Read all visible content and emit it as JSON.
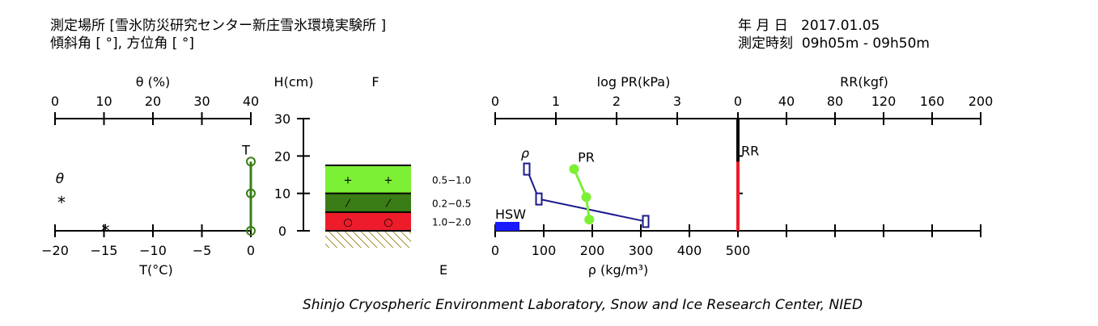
{
  "header": {
    "site_label": "測定場所 [",
    "site_name": "雪氷防災研究センター新庄雪氷環境実験所",
    "site_close": "]",
    "angle_line": "傾斜角 [ °], 方位角 [ °]",
    "date_label": "年 月 日",
    "date_value": "2017.01.05",
    "time_label": "測定時刻",
    "time_value": "09h05m - 09h50m"
  },
  "footer": "Shinjo Cryospheric Environment Laboratory, Snow and Ice Research Center, NIED",
  "chart_data": [
    {
      "type": "line",
      "panel": "theta-temperature",
      "top_axis_label": "θ (%)",
      "top_axis_ticks": [
        "0",
        "10",
        "20",
        "30",
        "40"
      ],
      "bottom_axis_label": "T(°C)",
      "bottom_axis_ticks": [
        "−20",
        "−15",
        "−10",
        "−5",
        "0"
      ],
      "xlim_temperature": [
        -20,
        0
      ],
      "xlim_theta": [
        0,
        40
      ],
      "legend": {
        "theta_symbol": "θ",
        "theta_marker": "*"
      },
      "series": [
        {
          "name": "T",
          "color": "#3a7d17",
          "marker": "circle",
          "points": [
            {
              "h": 0,
              "t": 0
            },
            {
              "h": 10,
              "t": 0
            },
            {
              "h": 18.5,
              "t": 0
            }
          ]
        },
        {
          "name": "θ",
          "marker": "*",
          "points": [
            {
              "h": 0,
              "theta": 10
            }
          ]
        }
      ]
    },
    {
      "type": "table",
      "panel": "stratigraphy",
      "height_axis_label": "H(cm)",
      "height_ticks": [
        "0",
        "10",
        "20",
        "30"
      ],
      "ylim": [
        0,
        30
      ],
      "column_label_top": "F",
      "column_label_bottom": "E",
      "snow_top_cm": 17.5,
      "layers": [
        {
          "bottom": 10,
          "top": 17.5,
          "color": "#7cf034",
          "grain_symbol": "+",
          "size": "0.5−1.0"
        },
        {
          "bottom": 5,
          "top": 10,
          "color": "#3a7d17",
          "grain_symbol": "⁄",
          "size": "0.2−0.5"
        },
        {
          "bottom": 0,
          "top": 5,
          "color": "#ee1c2b",
          "grain_symbol": "○",
          "size": "1.0−2.0"
        }
      ]
    },
    {
      "type": "line",
      "panel": "density-hardness",
      "top_axis_label": "log PR(kPa)",
      "top_axis_ticks": [
        "0",
        "1",
        "2",
        "3"
      ],
      "xlim_logpr": [
        0,
        4
      ],
      "bottom_axis_label": "ρ (kg/m³)",
      "bottom_axis_ticks": [
        "0",
        "100",
        "200",
        "300",
        "400",
        "500"
      ],
      "xlim_density": [
        0,
        500
      ],
      "series": [
        {
          "name": "ρ",
          "color": "#1a1a8c",
          "marker": "rect",
          "points": [
            {
              "h": 16.5,
              "value": 65
            },
            {
              "h": 8.5,
              "value": 90
            },
            {
              "h": 2.5,
              "value": 310
            }
          ]
        },
        {
          "name": "PR",
          "color": "#7cf034",
          "marker": "circle",
          "points": [
            {
              "h": 16.5,
              "value": 1.3
            },
            {
              "h": 9,
              "value": 1.5
            },
            {
              "h": 3,
              "value": 1.55
            }
          ]
        },
        {
          "name": "HSW",
          "color": "#1a1aff",
          "type": "bar",
          "value": 50
        }
      ]
    },
    {
      "type": "bar",
      "panel": "ram-resistance",
      "top_axis_label": "RR(kgf)",
      "top_axis_ticks": [
        "0",
        "40",
        "80",
        "120",
        "160",
        "200"
      ],
      "xlim": [
        0,
        200
      ],
      "series": [
        {
          "name": "RR",
          "color": "#ee1c2b",
          "bottom": 0,
          "top": 18.5,
          "value": 0
        }
      ]
    }
  ]
}
